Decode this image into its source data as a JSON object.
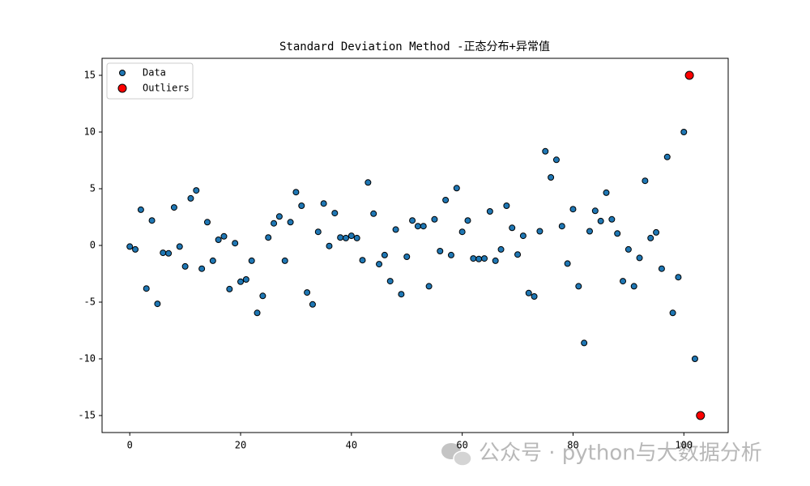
{
  "chart_data": {
    "type": "scatter",
    "title": "Standard Deviation Method -正态分布+异常值",
    "xlim": [
      -5,
      108
    ],
    "ylim": [
      -16.5,
      16.5
    ],
    "xticks": [
      0,
      20,
      40,
      60,
      80,
      100
    ],
    "yticks": [
      -15,
      -10,
      -5,
      0,
      5,
      10,
      15
    ],
    "legend": "upper left",
    "series": [
      {
        "name": "Data",
        "color": "#1f77b4",
        "x": [
          0,
          1,
          2,
          3,
          4,
          5,
          6,
          7,
          8,
          9,
          10,
          11,
          12,
          13,
          14,
          15,
          16,
          17,
          18,
          19,
          20,
          21,
          22,
          23,
          24,
          25,
          26,
          27,
          28,
          29,
          30,
          31,
          32,
          33,
          34,
          35,
          36,
          37,
          38,
          39,
          40,
          41,
          42,
          43,
          44,
          45,
          46,
          47,
          48,
          49,
          50,
          51,
          52,
          53,
          54,
          55,
          56,
          57,
          58,
          59,
          60,
          61,
          62,
          63,
          64,
          65,
          66,
          67,
          68,
          69,
          70,
          71,
          72,
          73,
          74,
          75,
          76,
          77,
          78,
          79,
          80,
          81,
          82,
          83,
          84,
          85,
          86,
          87,
          88,
          89,
          90,
          91,
          92,
          93,
          94,
          95,
          96,
          97,
          98,
          99,
          100,
          102
        ],
        "values": [
          -0.1,
          -0.35,
          3.15,
          -3.8,
          2.2,
          -5.15,
          -0.65,
          -0.7,
          3.35,
          -0.1,
          -1.85,
          4.15,
          4.85,
          -2.05,
          2.05,
          -1.35,
          0.5,
          0.8,
          -3.85,
          0.2,
          -3.2,
          -3.0,
          -1.35,
          -5.95,
          -4.45,
          0.7,
          1.95,
          2.55,
          -1.35,
          2.05,
          4.7,
          3.5,
          -4.15,
          -5.2,
          1.2,
          3.7,
          -0.05,
          2.85,
          0.7,
          0.65,
          0.85,
          0.65,
          -1.3,
          5.55,
          2.8,
          -1.65,
          -0.85,
          -3.15,
          1.4,
          -4.3,
          -1.0,
          2.2,
          1.7,
          1.7,
          -3.6,
          2.3,
          -0.5,
          4.0,
          -0.85,
          5.05,
          1.2,
          2.2,
          -1.15,
          -1.2,
          -1.15,
          3.0,
          -1.35,
          -0.35,
          3.5,
          1.55,
          -0.8,
          0.85,
          -4.2,
          -4.5,
          1.25,
          8.3,
          6.0,
          7.55,
          1.7,
          -1.6,
          3.2,
          -3.6,
          -8.6,
          1.25,
          3.05,
          2.15,
          4.65,
          2.3,
          1.05,
          -3.15,
          -0.35,
          -3.6,
          -1.1,
          5.7,
          0.65,
          1.15,
          -2.05,
          7.8,
          -5.95,
          -2.8,
          10,
          -10
        ]
      },
      {
        "name": "Outliers",
        "color": "#ff0000",
        "x": [
          101,
          103
        ],
        "values": [
          15,
          -15
        ]
      }
    ]
  },
  "watermark": "公众号 · python与大数据分析"
}
